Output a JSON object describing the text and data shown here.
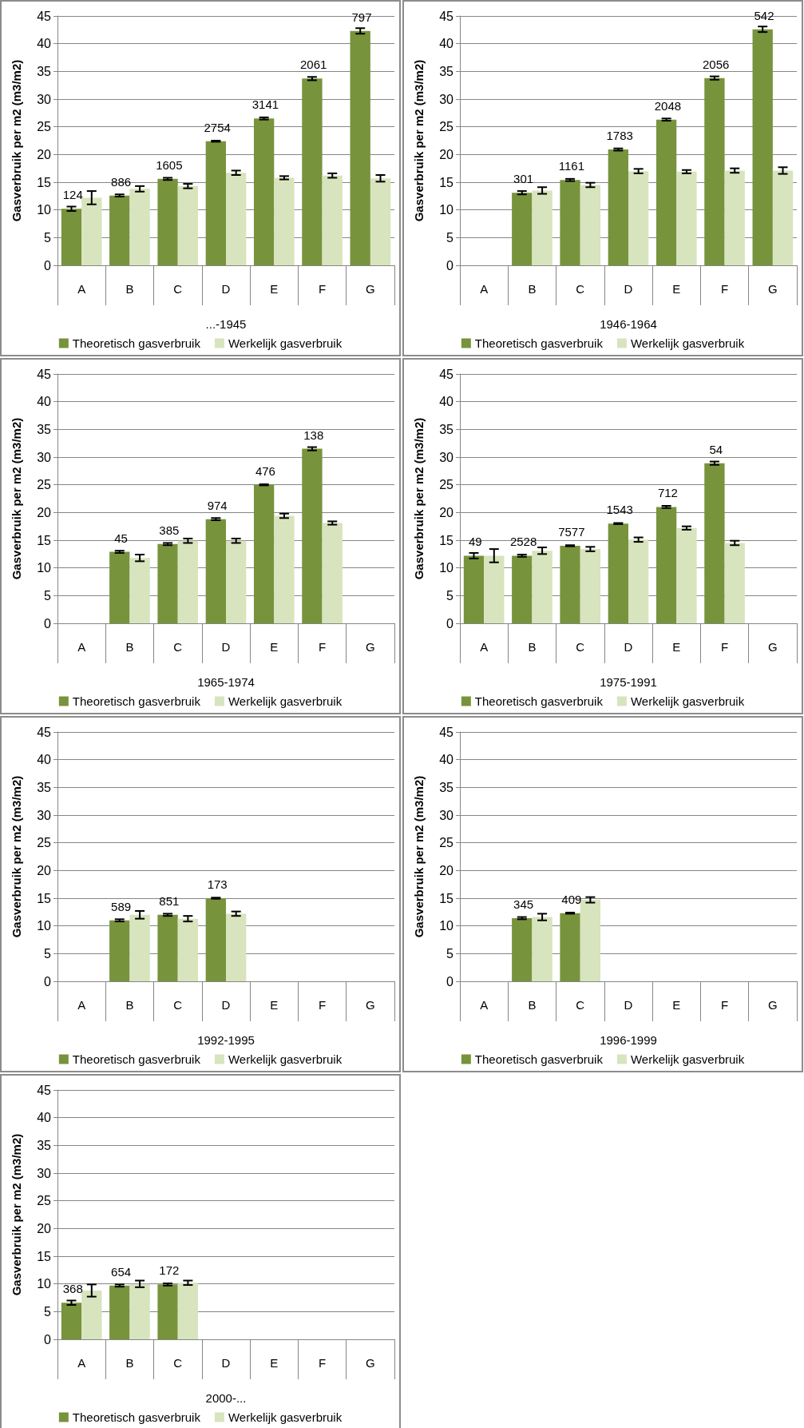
{
  "chart_data": [
    {
      "type": "bar",
      "xlabel": "...-1945",
      "ylabel": "Gasverbruik per m2 (m3/m2)",
      "categories": [
        "A",
        "B",
        "C",
        "D",
        "E",
        "F",
        "G"
      ],
      "ylim": [
        0,
        45
      ],
      "yticks": [
        0,
        5,
        10,
        15,
        20,
        25,
        30,
        35,
        40,
        45
      ],
      "grid": "y",
      "legend": "bottom",
      "annotations": [
        {
          "text": "124",
          "x": "A",
          "y": 10.2
        },
        {
          "text": "886",
          "x": "B",
          "y": 12.6
        },
        {
          "text": "1605",
          "x": "C",
          "y": 15.6
        },
        {
          "text": "2754",
          "x": "D",
          "y": 22.4
        },
        {
          "text": "3141",
          "x": "E",
          "y": 26.5
        },
        {
          "text": "2061",
          "x": "F",
          "y": 33.7
        },
        {
          "text": "797",
          "x": "G",
          "y": 42.3
        }
      ],
      "series": [
        {
          "name": "Theoretisch gasverbruik",
          "color": "#77933c",
          "values": [
            10.2,
            12.6,
            15.6,
            22.4,
            26.5,
            33.7,
            42.3
          ],
          "errors": [
            0.4,
            0.2,
            0.2,
            0.1,
            0.2,
            0.3,
            0.5
          ]
        },
        {
          "name": "Werkelijk gasverbruik",
          "color": "#d7e4bd",
          "values": [
            12.2,
            13.8,
            14.3,
            16.7,
            15.8,
            16.2,
            15.7
          ],
          "errors": [
            1.2,
            0.5,
            0.4,
            0.4,
            0.3,
            0.4,
            0.6
          ]
        }
      ]
    },
    {
      "type": "bar",
      "xlabel": "1946-1964",
      "ylabel": "Gasverbruik per m2 (m3/m2)",
      "categories": [
        "A",
        "B",
        "C",
        "D",
        "E",
        "F",
        "G"
      ],
      "ylim": [
        0,
        45
      ],
      "yticks": [
        0,
        5,
        10,
        15,
        20,
        25,
        30,
        35,
        40,
        45
      ],
      "grid": "y",
      "legend": "bottom",
      "annotations": [
        {
          "text": "301",
          "x": "B",
          "y": 13.1
        },
        {
          "text": "1161",
          "x": "C",
          "y": 15.4
        },
        {
          "text": "1783",
          "x": "D",
          "y": 20.9
        },
        {
          "text": "2048",
          "x": "E",
          "y": 26.3
        },
        {
          "text": "2056",
          "x": "F",
          "y": 33.8
        },
        {
          "text": "542",
          "x": "G",
          "y": 42.6
        }
      ],
      "series": [
        {
          "name": "Theoretisch gasverbruik",
          "color": "#77933c",
          "values": [
            null,
            13.1,
            15.4,
            20.9,
            26.3,
            33.8,
            42.6
          ],
          "errors": [
            null,
            0.3,
            0.2,
            0.2,
            0.2,
            0.3,
            0.5
          ]
        },
        {
          "name": "Werkelijk gasverbruik",
          "color": "#d7e4bd",
          "values": [
            null,
            13.5,
            14.5,
            17.0,
            16.9,
            17.1,
            17.1
          ],
          "errors": [
            null,
            0.6,
            0.4,
            0.4,
            0.3,
            0.4,
            0.6
          ]
        }
      ]
    },
    {
      "type": "bar",
      "xlabel": "1965-1974",
      "ylabel": "Gasverbruik per m2 (m3/m2)",
      "categories": [
        "A",
        "B",
        "C",
        "D",
        "E",
        "F",
        "G"
      ],
      "ylim": [
        0,
        45
      ],
      "yticks": [
        0,
        5,
        10,
        15,
        20,
        25,
        30,
        35,
        40,
        45
      ],
      "grid": "y",
      "legend": "bottom",
      "annotations": [
        {
          "text": "45",
          "x": "B",
          "y": 12.9
        },
        {
          "text": "385",
          "x": "C",
          "y": 14.3
        },
        {
          "text": "974",
          "x": "D",
          "y": 18.8
        },
        {
          "text": "476",
          "x": "E",
          "y": 25.0
        },
        {
          "text": "138",
          "x": "F",
          "y": 31.5
        }
      ],
      "series": [
        {
          "name": "Theoretisch gasverbruik",
          "color": "#77933c",
          "values": [
            null,
            12.9,
            14.3,
            18.8,
            25.0,
            31.5,
            null
          ],
          "errors": [
            null,
            0.2,
            0.2,
            0.2,
            0.1,
            0.3,
            null
          ]
        },
        {
          "name": "Werkelijk gasverbruik",
          "color": "#d7e4bd",
          "values": [
            null,
            11.8,
            14.9,
            14.9,
            19.4,
            18.1,
            null
          ],
          "errors": [
            null,
            0.6,
            0.4,
            0.4,
            0.4,
            0.3,
            null
          ]
        }
      ]
    },
    {
      "type": "bar",
      "xlabel": "1975-1991",
      "ylabel": "Gasverbruik per m2 (m3/m2)",
      "categories": [
        "A",
        "B",
        "C",
        "D",
        "E",
        "F",
        "G"
      ],
      "ylim": [
        0,
        45
      ],
      "yticks": [
        0,
        5,
        10,
        15,
        20,
        25,
        30,
        35,
        40,
        45
      ],
      "grid": "y",
      "legend": "bottom",
      "annotations": [
        {
          "text": "49",
          "x": "A",
          "y": 12.2
        },
        {
          "text": "2528",
          "x": "B",
          "y": 12.2
        },
        {
          "text": "7577",
          "x": "C",
          "y": 14.0
        },
        {
          "text": "1543",
          "x": "D",
          "y": 18.0
        },
        {
          "text": "712",
          "x": "E",
          "y": 21.0
        },
        {
          "text": "54",
          "x": "F",
          "y": 28.9
        }
      ],
      "series": [
        {
          "name": "Theoretisch gasverbruik",
          "color": "#77933c",
          "values": [
            12.2,
            12.2,
            14.0,
            18.0,
            21.0,
            28.9,
            null
          ],
          "errors": [
            0.5,
            0.2,
            0.1,
            0.1,
            0.2,
            0.3,
            null
          ]
        },
        {
          "name": "Werkelijk gasverbruik",
          "color": "#d7e4bd",
          "values": [
            12.2,
            13.1,
            13.4,
            15.1,
            17.2,
            14.5,
            null
          ],
          "errors": [
            1.2,
            0.6,
            0.4,
            0.4,
            0.3,
            0.4,
            null
          ]
        }
      ]
    },
    {
      "type": "bar",
      "xlabel": "1992-1995",
      "ylabel": "Gasverbruik per m2 (m3/m2)",
      "categories": [
        "A",
        "B",
        "C",
        "D",
        "E",
        "F",
        "G"
      ],
      "ylim": [
        0,
        45
      ],
      "yticks": [
        0,
        5,
        10,
        15,
        20,
        25,
        30,
        35,
        40,
        45
      ],
      "grid": "y",
      "legend": "bottom",
      "annotations": [
        {
          "text": "589",
          "x": "B",
          "y": 11.0
        },
        {
          "text": "851",
          "x": "C",
          "y": 12.0
        },
        {
          "text": "173",
          "x": "D",
          "y": 15.0
        }
      ],
      "series": [
        {
          "name": "Theoretisch gasverbruik",
          "color": "#77933c",
          "values": [
            null,
            11.0,
            12.0,
            15.0,
            null,
            null,
            null
          ],
          "errors": [
            null,
            0.2,
            0.2,
            0.1,
            null,
            null,
            null
          ]
        },
        {
          "name": "Werkelijk gasverbruik",
          "color": "#d7e4bd",
          "values": [
            null,
            12.0,
            11.3,
            12.2,
            null,
            null,
            null
          ],
          "errors": [
            null,
            0.7,
            0.5,
            0.4,
            null,
            null,
            null
          ]
        }
      ]
    },
    {
      "type": "bar",
      "xlabel": "1996-1999",
      "ylabel": "Gasverbruik per m2 (m3/m2)",
      "categories": [
        "A",
        "B",
        "C",
        "D",
        "E",
        "F",
        "G"
      ],
      "ylim": [
        0,
        45
      ],
      "yticks": [
        0,
        5,
        10,
        15,
        20,
        25,
        30,
        35,
        40,
        45
      ],
      "grid": "y",
      "legend": "bottom",
      "annotations": [
        {
          "text": "345",
          "x": "B",
          "y": 11.4
        },
        {
          "text": "409",
          "x": "C",
          "y": 12.3
        }
      ],
      "series": [
        {
          "name": "Theoretisch gasverbruik",
          "color": "#77933c",
          "values": [
            null,
            11.4,
            12.3,
            null,
            null,
            null,
            null
          ],
          "errors": [
            null,
            0.2,
            0.1,
            null,
            null,
            null,
            null
          ]
        },
        {
          "name": "Werkelijk gasverbruik",
          "color": "#d7e4bd",
          "values": [
            null,
            11.6,
            14.7,
            null,
            null,
            null,
            null
          ],
          "errors": [
            null,
            0.6,
            0.5,
            null,
            null,
            null,
            null
          ]
        }
      ]
    },
    {
      "type": "bar",
      "xlabel": "2000-...",
      "ylabel": "Gasverbruik per m2 (m3/m2)",
      "categories": [
        "A",
        "B",
        "C",
        "D",
        "E",
        "F",
        "G"
      ],
      "ylim": [
        0,
        45
      ],
      "yticks": [
        0,
        5,
        10,
        15,
        20,
        25,
        30,
        35,
        40,
        45
      ],
      "grid": "y",
      "legend": "bottom",
      "annotations": [
        {
          "text": "368",
          "x": "A",
          "y": 6.6
        },
        {
          "text": "654",
          "x": "B",
          "y": 9.7
        },
        {
          "text": "172",
          "x": "C",
          "y": 9.9
        }
      ],
      "series": [
        {
          "name": "Theoretisch gasverbruik",
          "color": "#77933c",
          "values": [
            6.6,
            9.7,
            9.9,
            null,
            null,
            null,
            null
          ],
          "errors": [
            0.4,
            0.2,
            0.2,
            null,
            null,
            null,
            null
          ]
        },
        {
          "name": "Werkelijk gasverbruik",
          "color": "#d7e4bd",
          "values": [
            8.8,
            10.0,
            10.2,
            null,
            null,
            null,
            null
          ],
          "errors": [
            1.1,
            0.6,
            0.4,
            null,
            null,
            null,
            null
          ]
        }
      ]
    }
  ]
}
